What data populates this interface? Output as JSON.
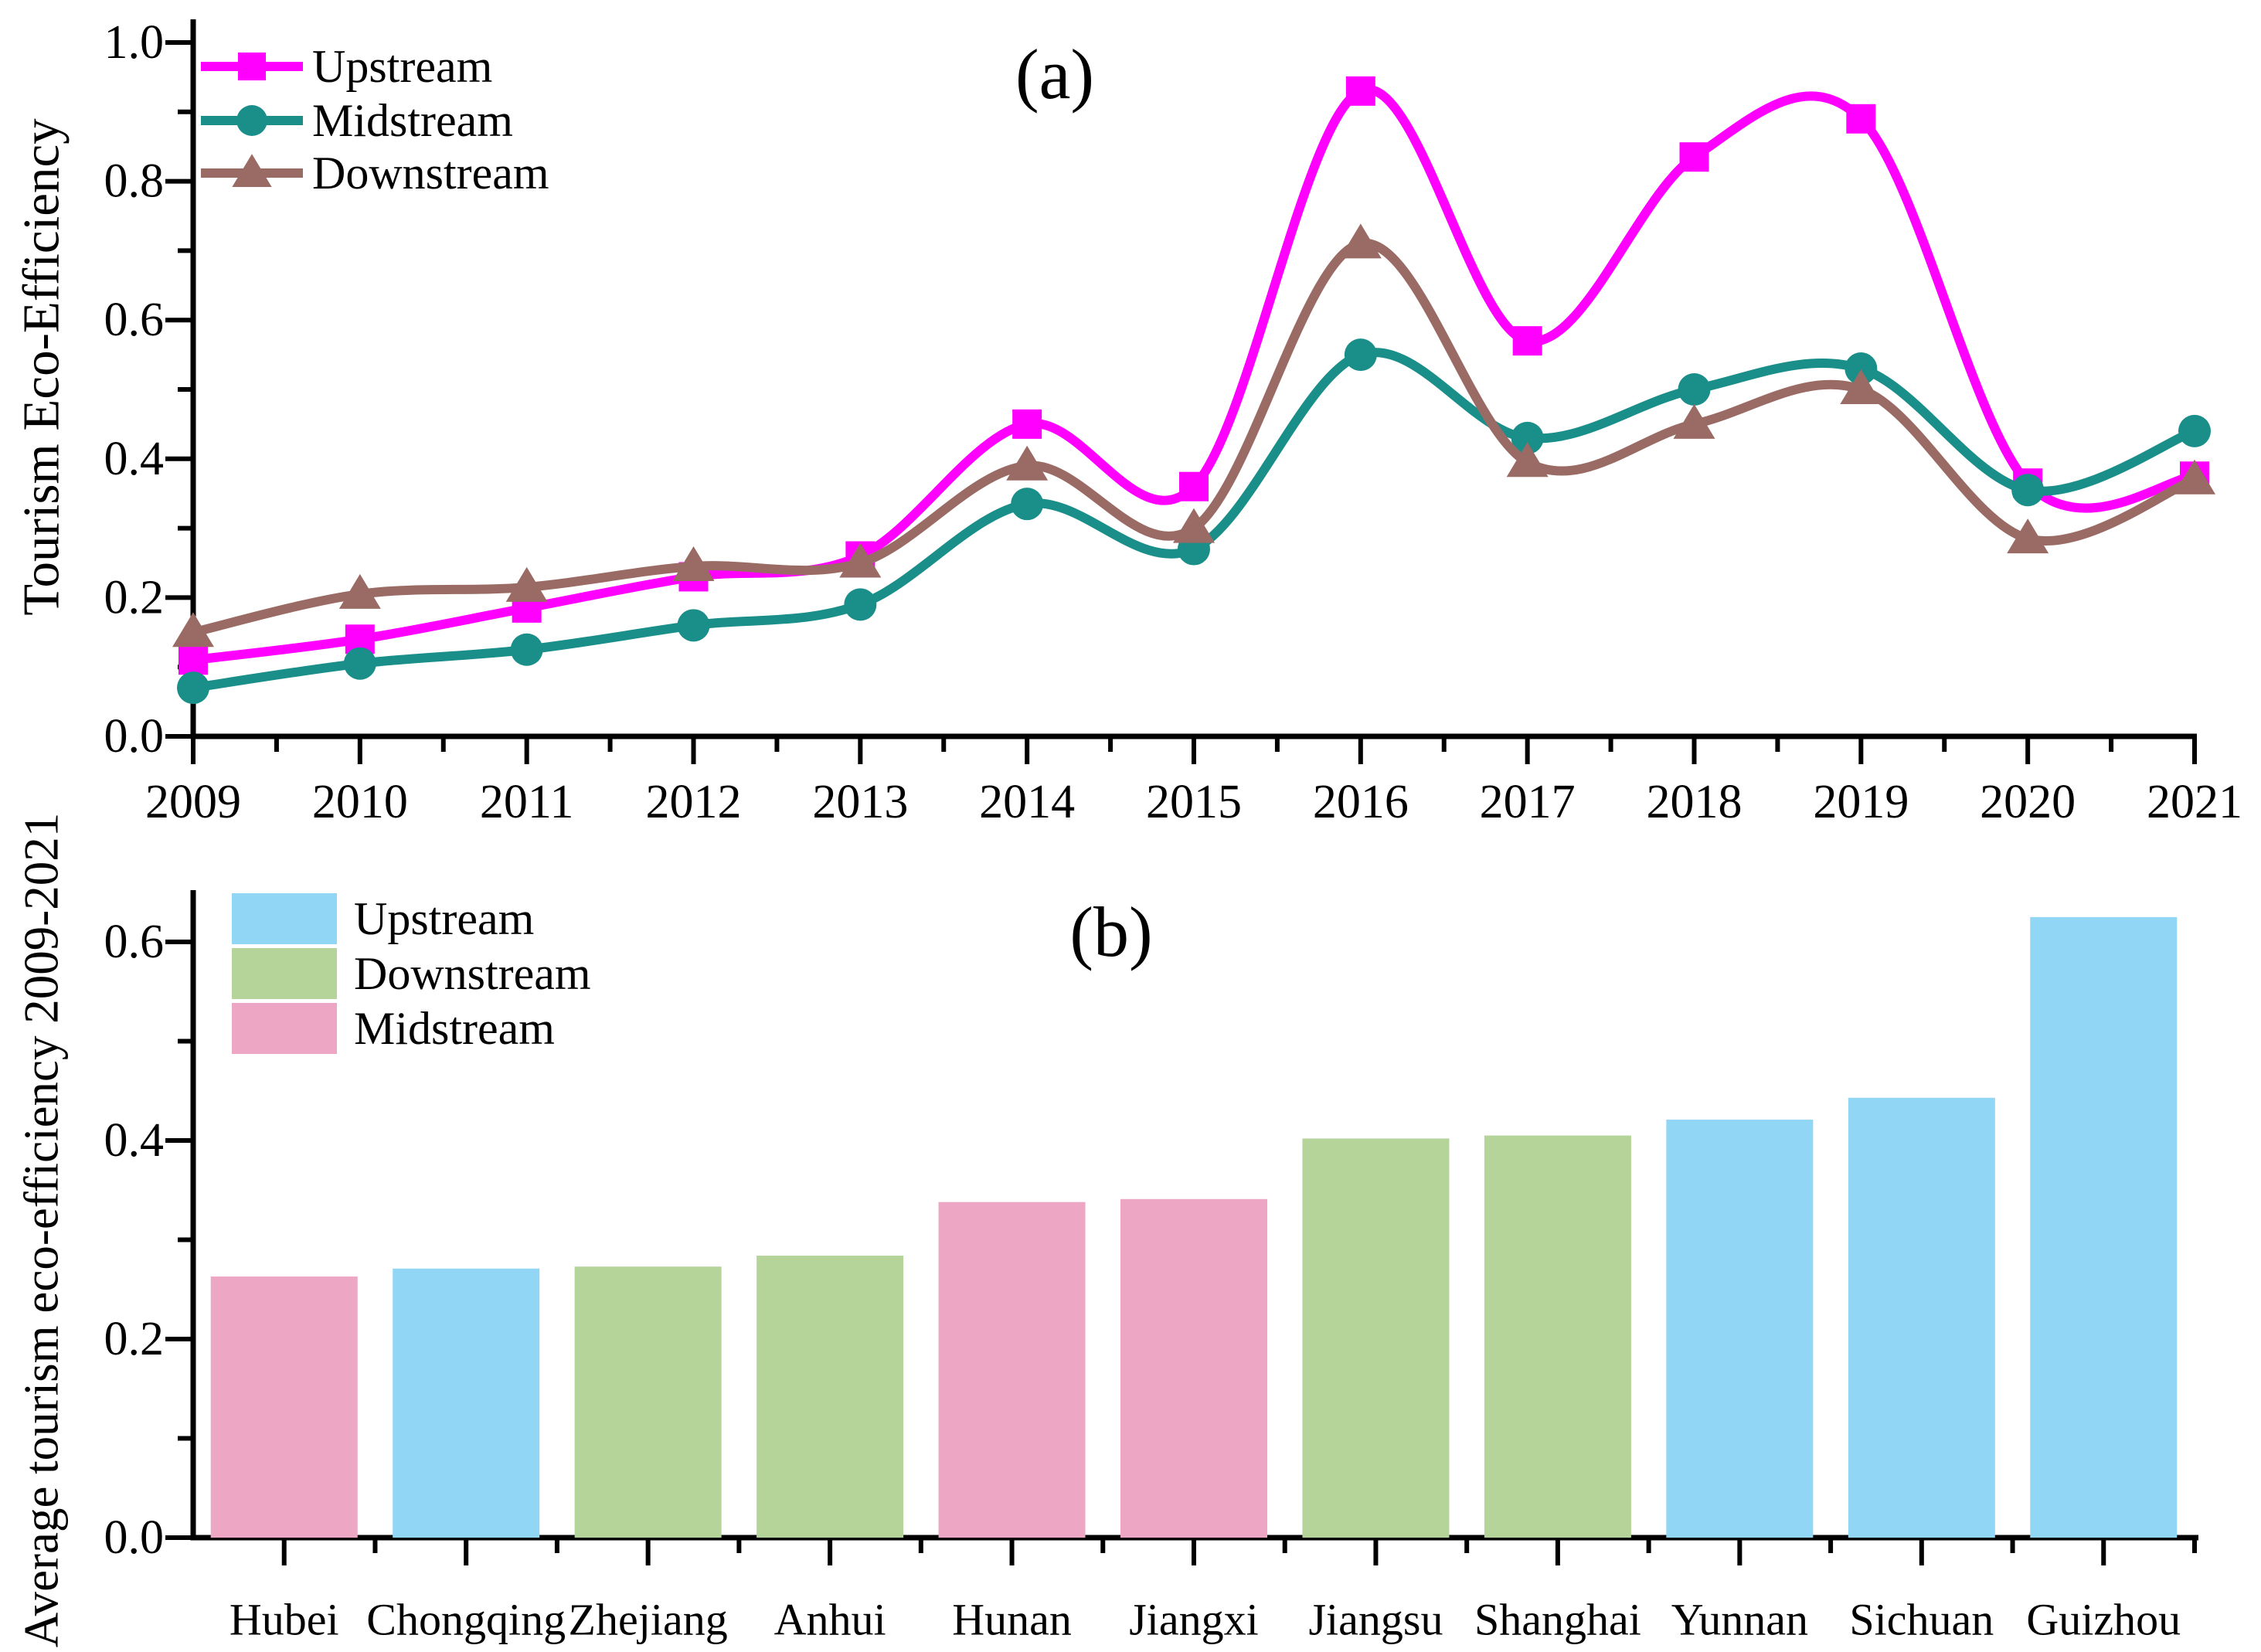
{
  "ui": {
    "panel_a": {
      "label": "(a)",
      "y_axis_title": "Tourism Eco-Efficiency"
    },
    "panel_b": {
      "label": "(b)",
      "y_axis_title": "Average tourism eco-efficiency 2009-2021"
    }
  },
  "colors": {
    "upstream_line": "#ff00ff",
    "midstream_line": "#1a8e89",
    "downstream_line": "#9a6b64",
    "upstream_bar": "#92d6f5",
    "downstream_bar": "#b5d49a",
    "midstream_bar": "#eda6c4",
    "axis": "#000000"
  },
  "chart_data": [
    {
      "type": "line",
      "panel": "a",
      "panel_label": "(a)",
      "title": "",
      "xlabel": "",
      "ylabel": "Tourism Eco-Efficiency",
      "x": [
        2009,
        2010,
        2011,
        2012,
        2013,
        2014,
        2015,
        2016,
        2017,
        2018,
        2019,
        2020,
        2021
      ],
      "ylim": [
        0.0,
        1.0
      ],
      "yticks": [
        0.0,
        0.2,
        0.4,
        0.6,
        0.8,
        1.0
      ],
      "minor_ytick_step": 0.1,
      "grid": false,
      "legend_position": "top-left",
      "curve": "smooth-spline",
      "series": [
        {
          "name": "Upstream",
          "color": "#ff00ff",
          "marker": "square",
          "values": [
            0.11,
            0.14,
            0.185,
            0.23,
            0.26,
            0.45,
            0.36,
            0.93,
            0.57,
            0.835,
            0.89,
            0.365,
            0.375
          ]
        },
        {
          "name": "Midstream",
          "color": "#1a8e89",
          "marker": "circle",
          "values": [
            0.07,
            0.105,
            0.125,
            0.16,
            0.19,
            0.335,
            0.27,
            0.55,
            0.43,
            0.5,
            0.53,
            0.355,
            0.44
          ]
        },
        {
          "name": "Downstream",
          "color": "#9a6b64",
          "marker": "triangle",
          "values": [
            0.15,
            0.205,
            0.215,
            0.245,
            0.25,
            0.39,
            0.3,
            0.71,
            0.395,
            0.45,
            0.5,
            0.285,
            0.37
          ]
        }
      ]
    },
    {
      "type": "bar",
      "panel": "b",
      "panel_label": "(b)",
      "title": "",
      "xlabel": "",
      "ylabel": "Average tourism eco-efficiency 2009-2021",
      "categories": [
        "Hubei",
        "Chongqing",
        "Zhejiang",
        "Anhui",
        "Hunan",
        "Jiangxi",
        "Jiangsu",
        "Shanghai",
        "Yunnan",
        "Sichuan",
        "Guizhou"
      ],
      "values": [
        0.263,
        0.271,
        0.273,
        0.284,
        0.338,
        0.341,
        0.402,
        0.405,
        0.421,
        0.443,
        0.625
      ],
      "bar_groups": [
        "Midstream",
        "Upstream",
        "Downstream",
        "Downstream",
        "Midstream",
        "Midstream",
        "Downstream",
        "Downstream",
        "Upstream",
        "Upstream",
        "Upstream"
      ],
      "group_colors": {
        "Upstream": "#92d6f5",
        "Downstream": "#b5d49a",
        "Midstream": "#eda6c4"
      },
      "legend": [
        "Upstream",
        "Downstream",
        "Midstream"
      ],
      "ylim": [
        0.0,
        0.65
      ],
      "yticks": [
        0.0,
        0.2,
        0.4,
        0.6
      ],
      "minor_ytick_step": 0.1,
      "grid": false,
      "legend_position": "top-left"
    }
  ]
}
